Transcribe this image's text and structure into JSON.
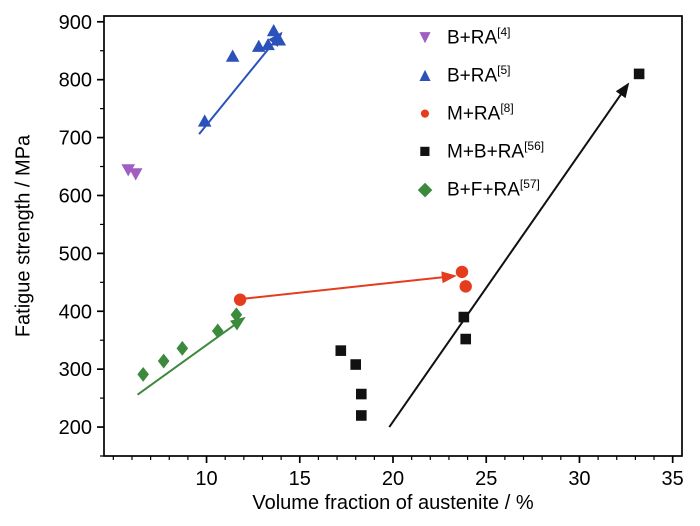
{
  "chart_data": {
    "type": "scatter",
    "title": "",
    "xlabel": "Volume fraction of austenite / %",
    "ylabel": "Fatigue strength / MPa",
    "xlim": [
      4.5,
      35.5
    ],
    "ylim": [
      150,
      910
    ],
    "x_ticks": [
      10,
      15,
      20,
      25,
      30,
      35
    ],
    "y_ticks": [
      200,
      300,
      400,
      500,
      600,
      700,
      800,
      900
    ],
    "x_minor_step": 1,
    "y_minor_step": 50,
    "grid": false,
    "legend_position": "upper-center-right",
    "axis_color": "#000000",
    "series": [
      {
        "name": "B+RA",
        "ref": "[4]",
        "marker": "triangle-down",
        "color": "#a05ec2",
        "points": [
          [
            5.8,
            645
          ],
          [
            6.2,
            638
          ]
        ]
      },
      {
        "name": "B+RA",
        "ref": "[5]",
        "marker": "triangle-up",
        "color": "#2b52b8",
        "points": [
          [
            9.9,
            728
          ],
          [
            11.4,
            840
          ],
          [
            12.8,
            857
          ],
          [
            13.3,
            860
          ],
          [
            13.6,
            884
          ],
          [
            13.9,
            868
          ]
        ],
        "trend": [
          [
            9.6,
            706
          ],
          [
            14.0,
            880
          ]
        ]
      },
      {
        "name": "M+RA",
        "ref": "[8]",
        "marker": "circle",
        "color": "#e63c1e",
        "points": [
          [
            11.8,
            420
          ],
          [
            23.7,
            468
          ],
          [
            23.9,
            443
          ]
        ],
        "trend": [
          [
            12.1,
            422
          ],
          [
            23.3,
            461
          ]
        ]
      },
      {
        "name": "M+B+RA",
        "ref": "[56]",
        "marker": "square",
        "color": "#111111",
        "points": [
          [
            17.2,
            332
          ],
          [
            18.0,
            308
          ],
          [
            18.3,
            257
          ],
          [
            18.3,
            220
          ],
          [
            23.8,
            390
          ],
          [
            23.9,
            352
          ],
          [
            33.2,
            810
          ]
        ],
        "trend": [
          [
            19.8,
            200
          ],
          [
            32.6,
            792
          ]
        ]
      },
      {
        "name": "B+F+RA",
        "ref": "[57]",
        "marker": "diamond",
        "color": "#3c8a3e",
        "points": [
          [
            6.6,
            291
          ],
          [
            7.7,
            314
          ],
          [
            8.7,
            336
          ],
          [
            10.6,
            366
          ],
          [
            11.6,
            394
          ]
        ],
        "trend": [
          [
            6.3,
            256
          ],
          [
            12.0,
            388
          ]
        ]
      }
    ]
  }
}
